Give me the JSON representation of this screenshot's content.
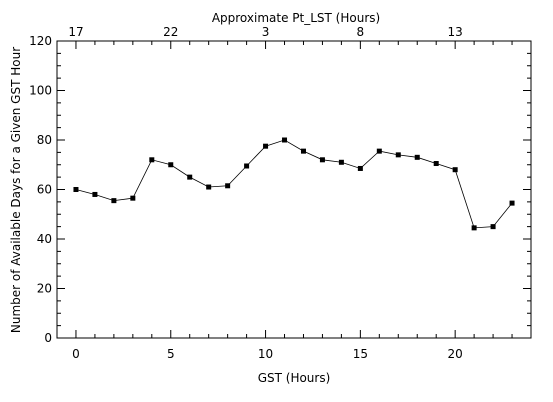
{
  "chart_data": {
    "type": "line",
    "xlabel": "GST (Hours)",
    "ylabel": "Number of Available Days for a Given GST Hour",
    "top_axis_label": "Approximate Pt_LST (Hours)",
    "xlim": [
      -1,
      24
    ],
    "ylim": [
      0,
      120
    ],
    "x_ticks": [
      0,
      5,
      10,
      15,
      20
    ],
    "y_ticks": [
      0,
      20,
      40,
      60,
      80,
      100,
      120
    ],
    "top_ticks": [
      {
        "gst": 0,
        "label": "17"
      },
      {
        "gst": 5,
        "label": "22"
      },
      {
        "gst": 10,
        "label": "3"
      },
      {
        "gst": 15,
        "label": "8"
      },
      {
        "gst": 20,
        "label": "13"
      }
    ],
    "grid": false,
    "marker": "square",
    "x": [
      0,
      1,
      2,
      3,
      4,
      5,
      6,
      7,
      8,
      9,
      10,
      11,
      12,
      13,
      14,
      15,
      16,
      17,
      18,
      19,
      20,
      21,
      22,
      23
    ],
    "y": [
      60,
      58,
      55.5,
      56.5,
      72,
      70,
      65,
      61,
      61.5,
      69.5,
      77.5,
      80,
      75.5,
      72,
      71,
      68.5,
      75.5,
      74,
      73,
      70.5,
      68,
      44.5,
      45,
      54.5
    ]
  }
}
